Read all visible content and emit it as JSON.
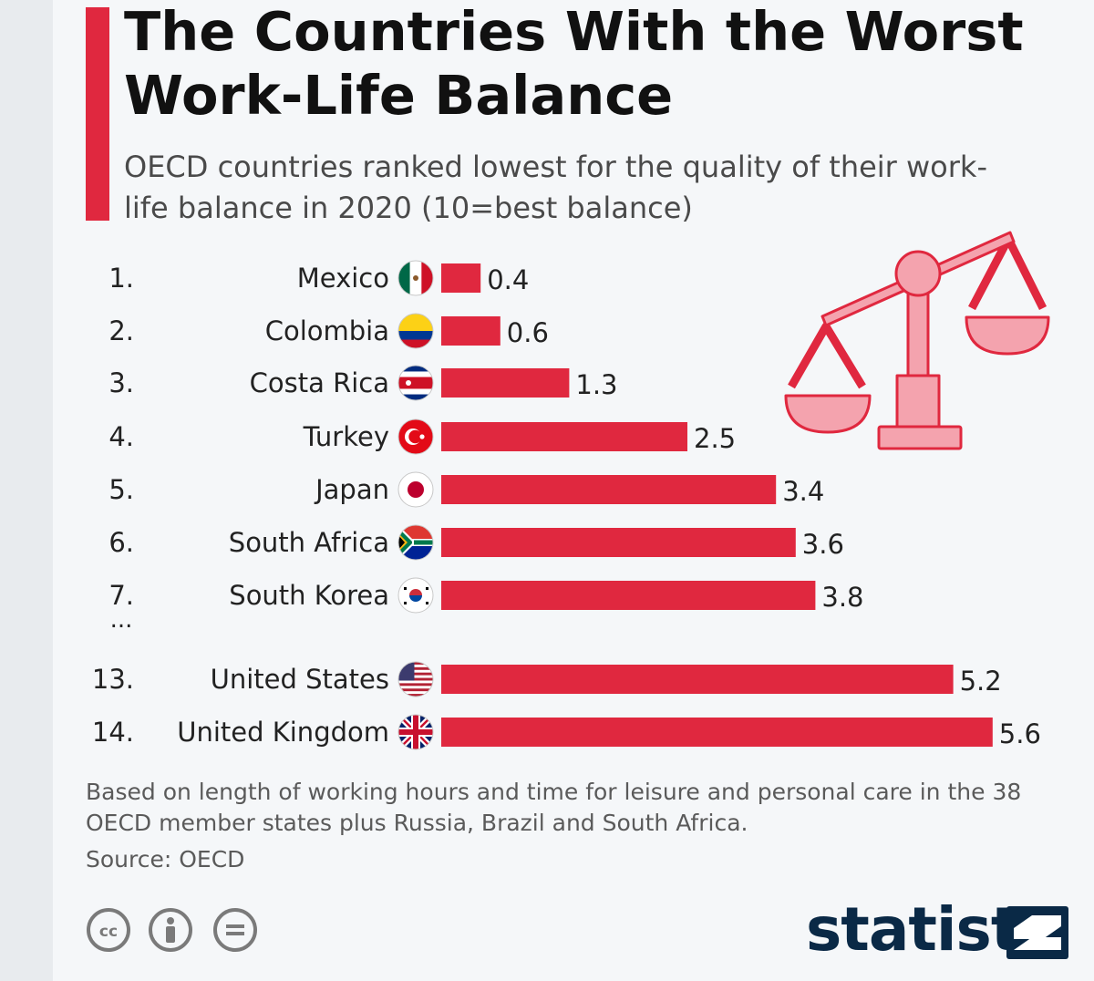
{
  "title": "The Countries With the Worst Work-Life Balance",
  "subtitle": "OECD countries ranked lowest for the quality of their work-life balance in 2020 (10=best balance)",
  "footnote": "Based on length of working hours and time for leisure and personal care in the 38 OECD member states plus Russia, Brazil and South Africa.",
  "source": "Source: OECD",
  "brand": "statista",
  "ellipsis": "...",
  "colors": {
    "bar": "#e0283f",
    "accent": "#e0283f",
    "brand": "#0a2946",
    "scale": "#f4a3ae"
  },
  "icons": [
    "scale-of-justice-icon",
    "cc-license-icon",
    "attribution-icon",
    "no-derivatives-icon",
    "statista-logo-icon"
  ],
  "chart_data": {
    "type": "bar",
    "orientation": "horizontal",
    "ranks": [
      "1.",
      "2.",
      "3.",
      "4.",
      "5.",
      "6.",
      "7.",
      "13.",
      "14."
    ],
    "categories": [
      "Mexico",
      "Colombia",
      "Costa Rica",
      "Turkey",
      "Japan",
      "South Africa",
      "South Korea",
      "United States",
      "United Kingdom"
    ],
    "values": [
      0.4,
      0.6,
      1.3,
      2.5,
      3.4,
      3.6,
      3.8,
      5.2,
      5.6
    ],
    "value_labels": [
      "0.4",
      "0.6",
      "1.3",
      "2.5",
      "3.4",
      "3.6",
      "3.8",
      "5.2",
      "5.6"
    ],
    "flags": [
      "mexico",
      "colombia",
      "costa-rica",
      "turkey",
      "japan",
      "south-africa",
      "south-korea",
      "united-states",
      "united-kingdom"
    ],
    "title": "",
    "xlabel": "",
    "ylabel": "",
    "grid": false,
    "legend": "none"
  }
}
